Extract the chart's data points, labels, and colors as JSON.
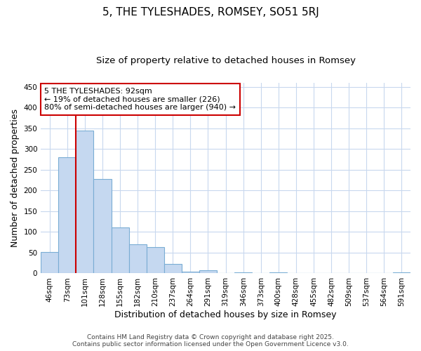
{
  "title": "5, THE TYLESHADES, ROMSEY, SO51 5RJ",
  "subtitle": "Size of property relative to detached houses in Romsey",
  "xlabel": "Distribution of detached houses by size in Romsey",
  "ylabel": "Number of detached properties",
  "categories": [
    "46sqm",
    "73sqm",
    "101sqm",
    "128sqm",
    "155sqm",
    "182sqm",
    "210sqm",
    "237sqm",
    "264sqm",
    "291sqm",
    "319sqm",
    "346sqm",
    "373sqm",
    "400sqm",
    "428sqm",
    "455sqm",
    "482sqm",
    "509sqm",
    "537sqm",
    "564sqm",
    "591sqm"
  ],
  "values": [
    52,
    280,
    345,
    228,
    110,
    70,
    63,
    22,
    4,
    7,
    0,
    2,
    0,
    3,
    0,
    0,
    0,
    0,
    0,
    0,
    3
  ],
  "bar_color": "#c5d8f0",
  "bar_edge_color": "#7aadd4",
  "background_color": "#ffffff",
  "grid_color": "#c8d8ee",
  "vline_color": "#cc0000",
  "vline_pos": 1.5,
  "annotation_text": "5 THE TYLESHADES: 92sqm\n← 19% of detached houses are smaller (226)\n80% of semi-detached houses are larger (940) →",
  "annotation_box_color": "#cc0000",
  "ylim": [
    0,
    460
  ],
  "yticks": [
    0,
    50,
    100,
    150,
    200,
    250,
    300,
    350,
    400,
    450
  ],
  "footnote": "Contains HM Land Registry data © Crown copyright and database right 2025.\nContains public sector information licensed under the Open Government Licence v3.0.",
  "title_fontsize": 11,
  "subtitle_fontsize": 9.5,
  "label_fontsize": 9,
  "tick_fontsize": 7.5,
  "footnote_fontsize": 6.5,
  "ann_fontsize": 8
}
